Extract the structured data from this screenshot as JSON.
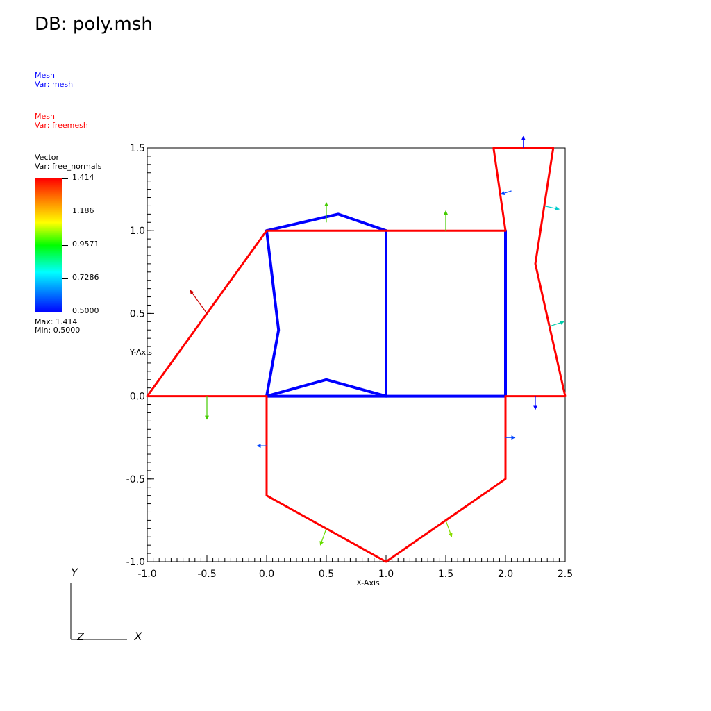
{
  "title": "DB: poly.msh",
  "legends": {
    "mesh": {
      "type": "Mesh",
      "var": "Var: mesh",
      "color": "#0000ff"
    },
    "free": {
      "type": "Mesh",
      "var": "Var: freemesh",
      "color": "#ff0000"
    },
    "vector": {
      "type": "Vector",
      "var": "Var: free_normals",
      "ticks": [
        "1.414",
        "1.186",
        "0.9571",
        "0.7286",
        "0.5000"
      ],
      "max": "Max: 1.414",
      "min": "Min: 0.5000"
    }
  },
  "axes": {
    "xlabel": "X-Axis",
    "ylabel": "Y-Axis",
    "xlim": [
      -1.0,
      2.5
    ],
    "ylim": [
      -1.0,
      1.5
    ],
    "xticks": [
      "-1.0",
      "-0.5",
      "0.0",
      "0.5",
      "1.0",
      "1.5",
      "2.0",
      "2.5"
    ],
    "yticks": [
      "-1.0",
      "-0.5",
      "0.0",
      "0.5",
      "1.0",
      "1.5"
    ]
  },
  "triad": {
    "y": "Y",
    "z": "Z",
    "x": "X"
  },
  "chart_data": {
    "type": "line",
    "xlim": [
      -1.0,
      2.5
    ],
    "ylim": [
      -1.0,
      1.5
    ],
    "series": [
      {
        "name": "Var: mesh",
        "color": "#0000ff",
        "lines": [
          [
            [
              0,
              1
            ],
            [
              0.6,
              1.1
            ],
            [
              1,
              1
            ]
          ],
          [
            [
              0,
              1
            ],
            [
              0.1,
              0.4
            ],
            [
              0,
              0
            ]
          ],
          [
            [
              0,
              0
            ],
            [
              0.5,
              0.1
            ],
            [
              1,
              0
            ]
          ],
          [
            [
              1,
              1
            ],
            [
              1,
              0
            ]
          ],
          [
            [
              2,
              1
            ],
            [
              2,
              0
            ]
          ],
          [
            [
              0,
              0
            ],
            [
              2,
              0
            ]
          ]
        ]
      },
      {
        "name": "Var: freemesh",
        "color": "#ff0000",
        "lines": [
          [
            [
              -1,
              0
            ],
            [
              0,
              1
            ],
            [
              2,
              1
            ],
            [
              1.9,
              1.5
            ],
            [
              2.4,
              1.5
            ],
            [
              2.25,
              0.8
            ],
            [
              2.5,
              0
            ],
            [
              2,
              0
            ],
            [
              2,
              -0.5
            ],
            [
              1,
              -1
            ],
            [
              0,
              -0.6
            ],
            [
              0,
              0
            ],
            [
              -1,
              0
            ]
          ]
        ]
      }
    ],
    "vectors": [
      {
        "x": -0.5,
        "y": 0.5,
        "dx": -0.14,
        "dy": 0.14,
        "color": "#cc0000"
      },
      {
        "x": 0.5,
        "y": 1.05,
        "dx": 0,
        "dy": 0.12,
        "color": "#44cc00"
      },
      {
        "x": 1.5,
        "y": 1.0,
        "dx": 0,
        "dy": 0.12,
        "color": "#44cc00"
      },
      {
        "x": -0.5,
        "y": 0.0,
        "dx": 0,
        "dy": -0.14,
        "color": "#44cc00"
      },
      {
        "x": 0.5,
        "y": -0.8,
        "dx": -0.05,
        "dy": -0.1,
        "color": "#66dd00"
      },
      {
        "x": 1.5,
        "y": -0.75,
        "dx": 0.05,
        "dy": -0.1,
        "color": "#88dd00"
      },
      {
        "x": 0.0,
        "y": -0.3,
        "dx": -0.08,
        "dy": 0,
        "color": "#0044ff"
      },
      {
        "x": 2.0,
        "y": -0.25,
        "dx": 0.08,
        "dy": 0,
        "color": "#0044ff"
      },
      {
        "x": 2.25,
        "y": 0.0,
        "dx": 0,
        "dy": -0.08,
        "color": "#0000ff"
      },
      {
        "x": 2.15,
        "y": 1.5,
        "dx": 0,
        "dy": 0.07,
        "color": "#0000ff"
      },
      {
        "x": 2.05,
        "y": 1.24,
        "dx": -0.09,
        "dy": -0.02,
        "color": "#0044ff"
      },
      {
        "x": 2.32,
        "y": 1.15,
        "dx": 0.13,
        "dy": -0.02,
        "color": "#00cccc"
      },
      {
        "x": 2.36,
        "y": 0.42,
        "dx": 0.13,
        "dy": 0.03,
        "color": "#00ccaa"
      }
    ]
  }
}
